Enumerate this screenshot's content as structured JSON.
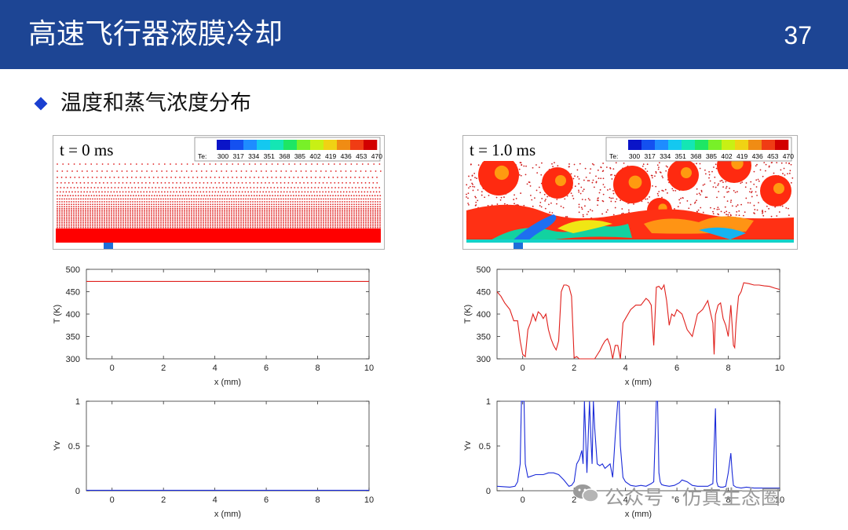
{
  "header": {
    "title": "高速飞行器液膜冷却",
    "page_number": "37"
  },
  "section": {
    "title": "温度和蒸气浓度分布"
  },
  "colors": {
    "header_bg": "#1d4594",
    "temp_line": "#e0201c",
    "yv_line": "#1a2ad8",
    "liquid": "#ff0000",
    "wall_jet": "#1e6fd9"
  },
  "panels": [
    {
      "time_label": "t = 0 ms"
    },
    {
      "time_label": "t = 1.0 ms"
    }
  ],
  "colorbar": {
    "label": "Te:",
    "ticks": [
      "300",
      "317",
      "334",
      "351",
      "368",
      "385",
      "402",
      "419",
      "436",
      "453",
      "470"
    ],
    "colors": [
      "#0a14c8",
      "#1450f0",
      "#1e8cff",
      "#14c8f0",
      "#14e6b4",
      "#1ee664",
      "#78f028",
      "#c8f014",
      "#f0d214",
      "#f08c14",
      "#f03c14",
      "#d20000"
    ]
  },
  "chart_data": [
    {
      "type": "line",
      "id": "T_t0",
      "xlabel": "x (mm)",
      "ylabel": "T (K)",
      "xlim": [
        -1,
        10
      ],
      "ylim": [
        300,
        500
      ],
      "xticks": [
        "0",
        "2",
        "4",
        "6",
        "8",
        "10"
      ],
      "yticks": [
        "300",
        "350",
        "400",
        "450",
        "500"
      ],
      "series": [
        {
          "x": [
            -1,
            10
          ],
          "y": [
            473,
            473
          ]
        }
      ]
    },
    {
      "type": "line",
      "id": "T_t1",
      "xlabel": "x (mm)",
      "ylabel": "T (K)",
      "xlim": [
        -1,
        10
      ],
      "ylim": [
        300,
        500
      ],
      "xticks": [
        "0",
        "2",
        "4",
        "6",
        "8",
        "10"
      ],
      "yticks": [
        "300",
        "350",
        "400",
        "450",
        "500"
      ],
      "series": [
        {
          "x": [
            -1,
            -0.85,
            -0.7,
            -0.5,
            -0.35,
            -0.2,
            -0.1,
            0,
            0.1,
            0.2,
            0.3,
            0.4,
            0.5,
            0.6,
            0.7,
            0.8,
            0.9,
            1.0,
            1.1,
            1.2,
            1.3,
            1.4,
            1.5,
            1.6,
            1.7,
            1.8,
            1.9,
            2.0,
            2.1,
            2.2,
            2.4,
            2.6,
            2.8,
            3.0,
            3.1,
            3.2,
            3.3,
            3.4,
            3.5,
            3.6,
            3.7,
            3.8,
            3.9,
            4.0,
            4.2,
            4.4,
            4.6,
            4.8,
            4.9,
            5.0,
            5.1,
            5.2,
            5.3,
            5.4,
            5.5,
            5.6,
            5.7,
            5.8,
            5.9,
            6.0,
            6.2,
            6.4,
            6.6,
            6.8,
            7.0,
            7.2,
            7.3,
            7.4,
            7.45,
            7.5,
            7.6,
            7.7,
            7.8,
            7.9,
            8.0,
            8.1,
            8.2,
            8.25,
            8.3,
            8.4,
            8.5,
            8.6,
            8.8,
            9.0,
            9.2,
            9.4,
            9.6,
            9.8,
            10
          ],
          "y": [
            450,
            440,
            425,
            410,
            385,
            385,
            340,
            310,
            305,
            365,
            380,
            400,
            385,
            405,
            400,
            390,
            400,
            365,
            345,
            330,
            320,
            340,
            450,
            465,
            465,
            462,
            440,
            302,
            305,
            300,
            300,
            300,
            300,
            318,
            330,
            340,
            345,
            330,
            300,
            330,
            330,
            300,
            380,
            390,
            410,
            420,
            420,
            435,
            430,
            420,
            330,
            460,
            462,
            455,
            465,
            430,
            375,
            400,
            395,
            410,
            400,
            365,
            350,
            400,
            410,
            430,
            405,
            380,
            310,
            398,
            420,
            425,
            390,
            375,
            350,
            420,
            330,
            325,
            380,
            440,
            450,
            470,
            468,
            465,
            465,
            463,
            462,
            458,
            455
          ]
        }
      ]
    },
    {
      "type": "line",
      "id": "Yv_t0",
      "xlabel": "x (mm)",
      "ylabel": "Yv",
      "xlim": [
        -1,
        10
      ],
      "ylim": [
        0,
        1
      ],
      "xticks": [
        "0",
        "2",
        "4",
        "6",
        "8",
        "10"
      ],
      "yticks": [
        "0",
        "0.5",
        "1"
      ],
      "series": [
        {
          "x": [
            -1,
            10
          ],
          "y": [
            0.005,
            0.005
          ]
        }
      ]
    },
    {
      "type": "line",
      "id": "Yv_t1",
      "xlabel": "x (mm)",
      "ylabel": "Yv",
      "xlim": [
        -1,
        10
      ],
      "ylim": [
        0,
        1
      ],
      "xticks": [
        "0",
        "2",
        "4",
        "6",
        "8",
        "10"
      ],
      "yticks": [
        "0",
        "0.5",
        "1"
      ],
      "series": [
        {
          "x": [
            -1,
            -0.5,
            -0.3,
            -0.2,
            -0.1,
            -0.05,
            0,
            0.05,
            0.1,
            0.2,
            0.3,
            0.5,
            0.8,
            1.0,
            1.2,
            1.4,
            1.6,
            1.8,
            1.9,
            2.0,
            2.05,
            2.1,
            2.2,
            2.3,
            2.35,
            2.4,
            2.5,
            2.6,
            2.65,
            2.7,
            2.75,
            2.8,
            2.9,
            3.0,
            3.1,
            3.2,
            3.4,
            3.5,
            3.6,
            3.7,
            3.75,
            3.8,
            3.9,
            4.0,
            4.2,
            4.4,
            4.6,
            4.8,
            5.0,
            5.1,
            5.2,
            5.25,
            5.3,
            5.35,
            5.4,
            5.5,
            5.7,
            5.9,
            6.1,
            6.2,
            6.4,
            6.6,
            6.8,
            7.0,
            7.2,
            7.4,
            7.5,
            7.55,
            7.6,
            7.7,
            7.8,
            7.9,
            8.0,
            8.1,
            8.15,
            8.2,
            8.3,
            8.5,
            8.7,
            9.0,
            9.5,
            10
          ],
          "y": [
            0.05,
            0.04,
            0.05,
            0.1,
            0.3,
            1.0,
            1.0,
            1.0,
            0.3,
            0.15,
            0.16,
            0.18,
            0.18,
            0.2,
            0.2,
            0.18,
            0.12,
            0.05,
            0.06,
            0.1,
            0.2,
            0.3,
            0.35,
            0.45,
            0.3,
            1.0,
            0.2,
            1.0,
            0.6,
            0.3,
            1.0,
            0.7,
            0.3,
            0.28,
            0.3,
            0.25,
            0.3,
            0.15,
            0.6,
            1.0,
            1.0,
            0.5,
            0.15,
            0.1,
            0.06,
            0.05,
            0.06,
            0.05,
            0.08,
            0.1,
            1.0,
            1.0,
            0.2,
            0.1,
            0.07,
            0.06,
            0.05,
            0.06,
            0.09,
            0.12,
            0.1,
            0.06,
            0.05,
            0.05,
            0.05,
            0.08,
            0.92,
            0.1,
            0.05,
            0.04,
            0.04,
            0.05,
            0.2,
            0.42,
            0.2,
            0.06,
            0.04,
            0.03,
            0.04,
            0.03,
            0.03,
            0.03
          ]
        }
      ]
    }
  ],
  "watermark": {
    "text": "公众号 · 仿真生态圈"
  }
}
